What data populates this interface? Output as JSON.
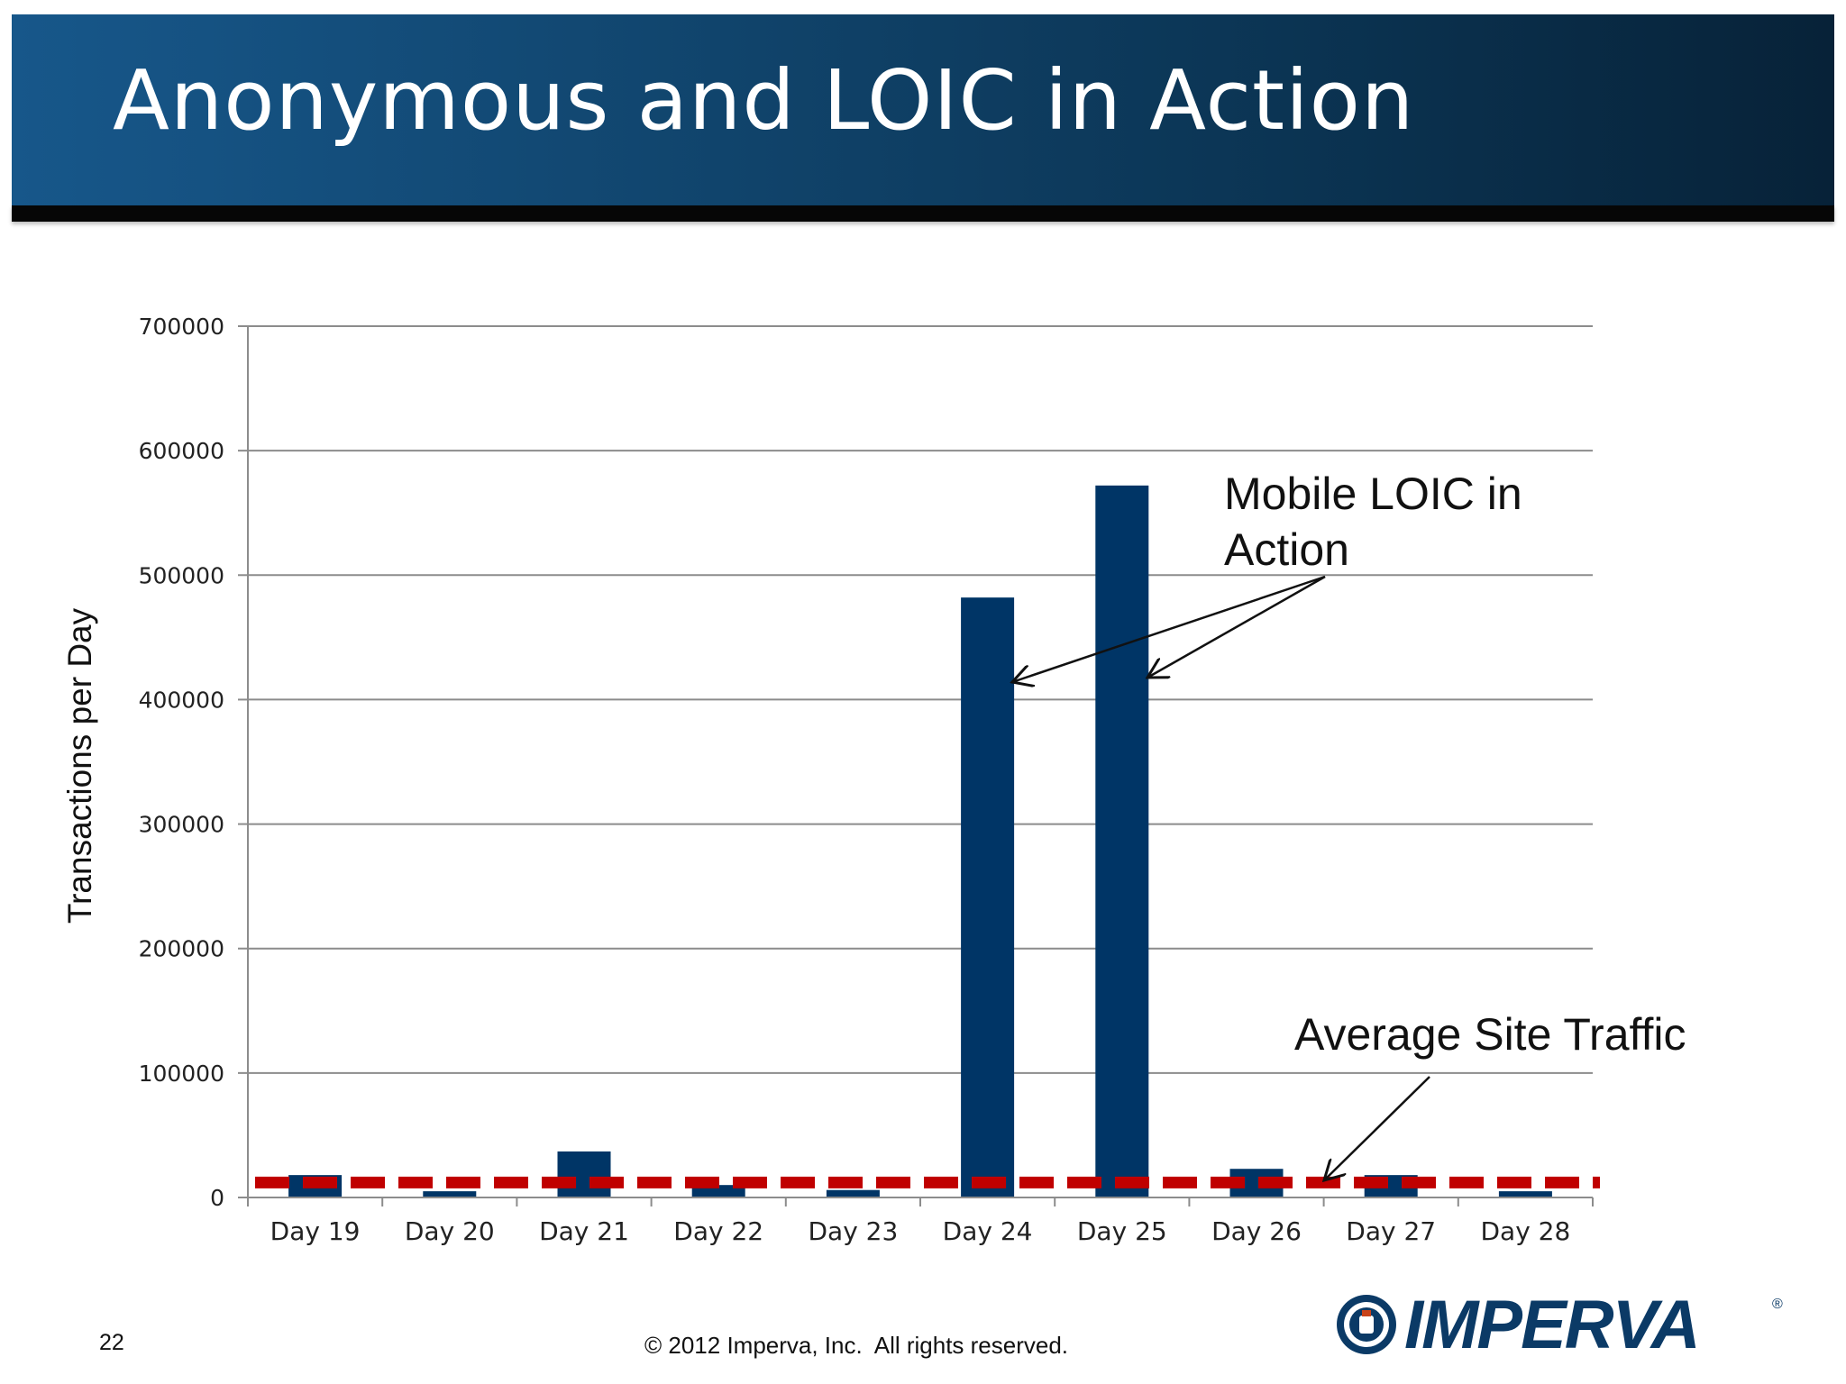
{
  "slide": {
    "title": "Anonymous and LOIC in Action",
    "page_number": "22",
    "copyright": "© 2012 Imperva, Inc.  All rights reserved.",
    "logo_text": "IMPERVA",
    "logo_mark": "®"
  },
  "colors": {
    "bar": "#003566",
    "average_line": "#c00000",
    "header_start": "#17578a",
    "header_end": "#072238"
  },
  "chart_data": {
    "type": "bar",
    "title": "",
    "xlabel": "",
    "ylabel": "Transactions per Day",
    "ylim": [
      0,
      700000
    ],
    "yticks": [
      "0",
      "100000",
      "200000",
      "300000",
      "400000",
      "500000",
      "600000",
      "700000"
    ],
    "categories": [
      "Day 19",
      "Day 20",
      "Day 21",
      "Day 22",
      "Day 23",
      "Day 24",
      "Day 25",
      "Day 26",
      "Day 27",
      "Day 28"
    ],
    "values": [
      18000,
      5000,
      37000,
      10000,
      6000,
      482000,
      572000,
      23000,
      18000,
      5000
    ],
    "grid": true,
    "average_line": {
      "value": 12000
    },
    "annotations": [
      {
        "text_lines": [
          "Mobile LOIC in",
          "Action"
        ],
        "targets": [
          "Day 24",
          "Day 25"
        ]
      },
      {
        "text_lines": [
          "Average Site Traffic"
        ],
        "targets": [
          "average"
        ]
      }
    ]
  }
}
